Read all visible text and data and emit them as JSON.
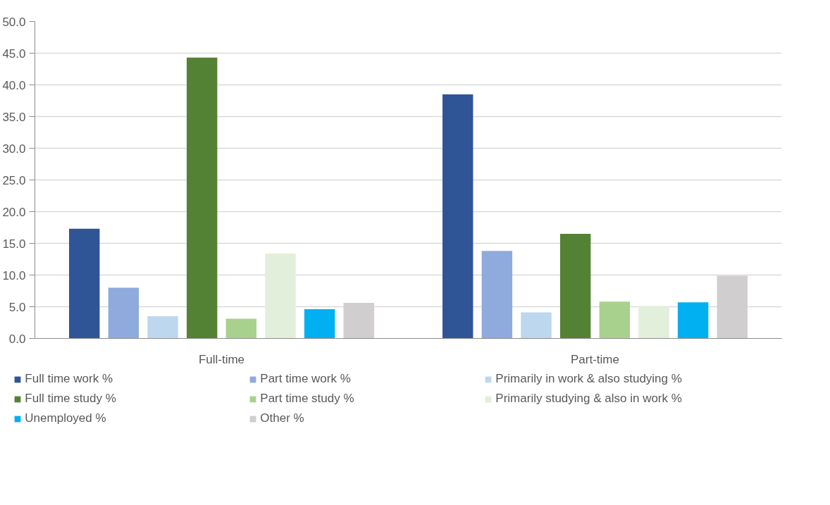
{
  "chart_data": {
    "type": "bar",
    "categories": [
      "Full-time",
      "Part-time"
    ],
    "series": [
      {
        "name": "Full time work %",
        "color": "#2f5597",
        "values": [
          17.3,
          38.5
        ]
      },
      {
        "name": "Part time work %",
        "color": "#8faadc",
        "values": [
          8.0,
          13.8
        ]
      },
      {
        "name": "Primarily in work & also studying %",
        "color": "#bdd7ee",
        "values": [
          3.5,
          4.1
        ]
      },
      {
        "name": "Full time study %",
        "color": "#548235",
        "values": [
          44.3,
          16.5
        ]
      },
      {
        "name": "Part time study %",
        "color": "#a9d18e",
        "values": [
          3.1,
          5.8
        ]
      },
      {
        "name": "Primarily studying & also in work %",
        "color": "#e2efda",
        "values": [
          13.4,
          5.1
        ]
      },
      {
        "name": "Unemployed %",
        "color": "#00b0f0",
        "values": [
          4.6,
          5.7
        ]
      },
      {
        "name": "Other %",
        "color": "#d0cece",
        "values": [
          5.6,
          9.9
        ]
      }
    ],
    "ylim": [
      0,
      50
    ],
    "yticks": [
      {
        "value": 0,
        "label": "0.0"
      },
      {
        "value": 5,
        "label": "5.0"
      },
      {
        "value": 10,
        "label": "10.0"
      },
      {
        "value": 15,
        "label": "15.0"
      },
      {
        "value": 20,
        "label": "20.0"
      },
      {
        "value": 25,
        "label": "25.0"
      },
      {
        "value": 30,
        "label": "30.0"
      },
      {
        "value": 35,
        "label": "35.0"
      },
      {
        "value": 40,
        "label": "40.0"
      },
      {
        "value": 45,
        "label": "45.0"
      },
      {
        "value": 50,
        "label": "50.0"
      }
    ],
    "grid": "y",
    "legend": "bottom"
  }
}
